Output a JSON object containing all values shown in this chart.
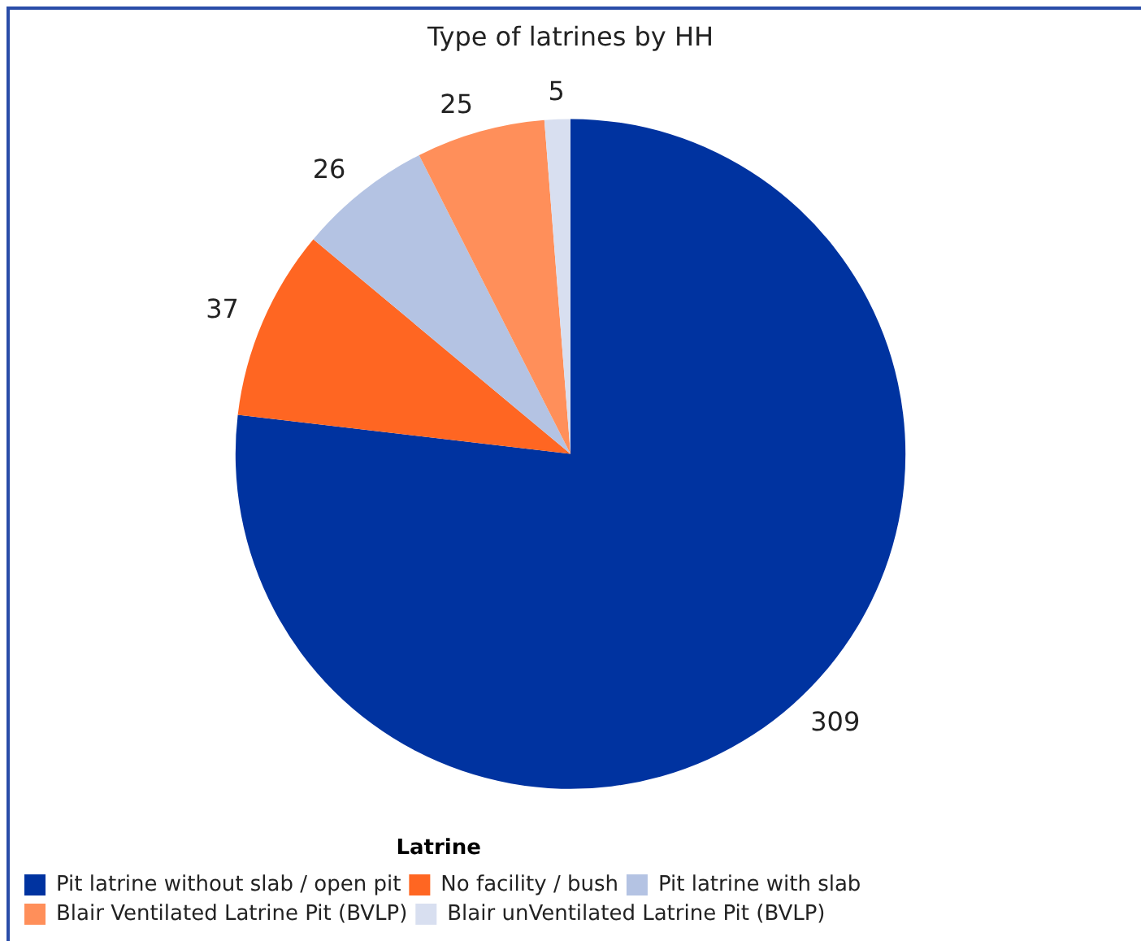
{
  "chart_data": {
    "type": "pie",
    "title": "Type of latrines by HH",
    "legend_title": "Latrine",
    "legend": "bottom left",
    "data_labels": true,
    "categories": [
      "Pit latrine without slab / open pit",
      "No facility / bush",
      "Pit latrine with slab",
      "Blair Ventilated Latrine Pit (BVLP)",
      "Blair unVentilated Latrine Pit (BVLP)"
    ],
    "values": [
      309,
      37,
      26,
      25,
      5
    ],
    "colors": [
      "#0033a0",
      "#ff6622",
      "#b4c3e3",
      "#ff8f5a",
      "#d8dff0"
    ]
  }
}
